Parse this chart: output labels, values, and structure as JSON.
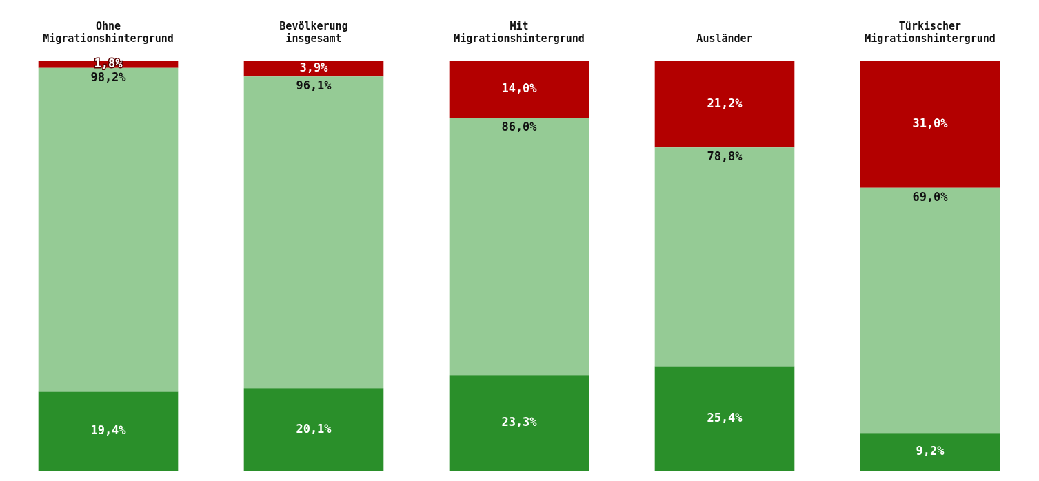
{
  "chart_data": {
    "type": "bar",
    "stacked": true,
    "categories": [
      "Ohne Migrationshintergrund",
      "Bevölkerung insgesamt",
      "Mit Migrationshintergrund",
      "Ausländer",
      "Türkischer Migrationshintergrund"
    ],
    "series": [
      {
        "color": "#2a8f2a",
        "values": [
          19.4,
          20.1,
          23.3,
          25.4,
          9.2
        ],
        "value_labels": [
          "19,4%",
          "20,1%",
          "23,3%",
          "25,4%",
          "9,2%"
        ]
      },
      {
        "color": "#95cb95",
        "values": [
          78.8,
          76.0,
          62.7,
          53.4,
          59.8
        ]
      },
      {
        "color": "#b30000",
        "values": [
          1.8,
          3.9,
          14.0,
          21.2,
          31.0
        ],
        "value_labels": [
          "1,8%",
          "3,9%",
          "14,0%",
          "21,2%",
          "31,0%"
        ]
      }
    ],
    "annotations": [
      {
        "text": "98,2%",
        "x": "Ohne Migrationshintergrund",
        "y": 98.2
      },
      {
        "text": "96,1%",
        "x": "Bevölkerung insgesamt",
        "y": 96.1
      },
      {
        "text": "86,0%",
        "x": "Mit Migrationshintergrund",
        "y": 86.0
      },
      {
        "text": "78,8%",
        "x": "Ausländer",
        "y": 78.8
      },
      {
        "text": "69,0%",
        "x": "Türkischer Migrationshintergrund",
        "y": 69.0
      }
    ],
    "ylim": [
      0,
      100
    ],
    "tick_labels": "x",
    "grid": false,
    "legend": false
  }
}
